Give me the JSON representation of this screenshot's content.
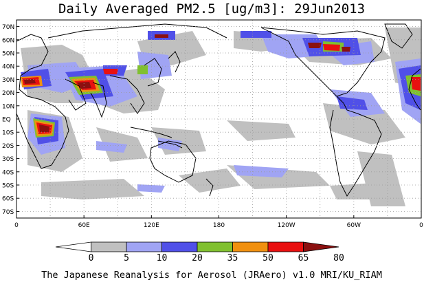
{
  "title": "Daily Averaged PM2.5 [ug/m3]: 29Jun2013",
  "footer": "The Japanese Reanalysis for Aerosol (JRAero) v1.0 MRI/KU_RIAM",
  "lat_ticks": [
    "70N",
    "60N",
    "50N",
    "40N",
    "30N",
    "20N",
    "10N",
    "EQ",
    "10S",
    "20S",
    "30S",
    "40S",
    "50S",
    "60S",
    "70S"
  ],
  "lon_ticks": [
    "0",
    "60E",
    "120E",
    "180",
    "120W",
    "60W",
    "0"
  ],
  "colorbar": {
    "labels": [
      "0",
      "5",
      "10",
      "20",
      "35",
      "50",
      "65",
      "80"
    ],
    "colors": [
      "#ffffff",
      "#c0c0c0",
      "#a0a4f4",
      "#5050e8",
      "#80c030",
      "#f09010",
      "#e81010",
      "#8b1010"
    ]
  },
  "colors": {
    "land_outline": "#000000",
    "grid": "#9a9a9a"
  }
}
